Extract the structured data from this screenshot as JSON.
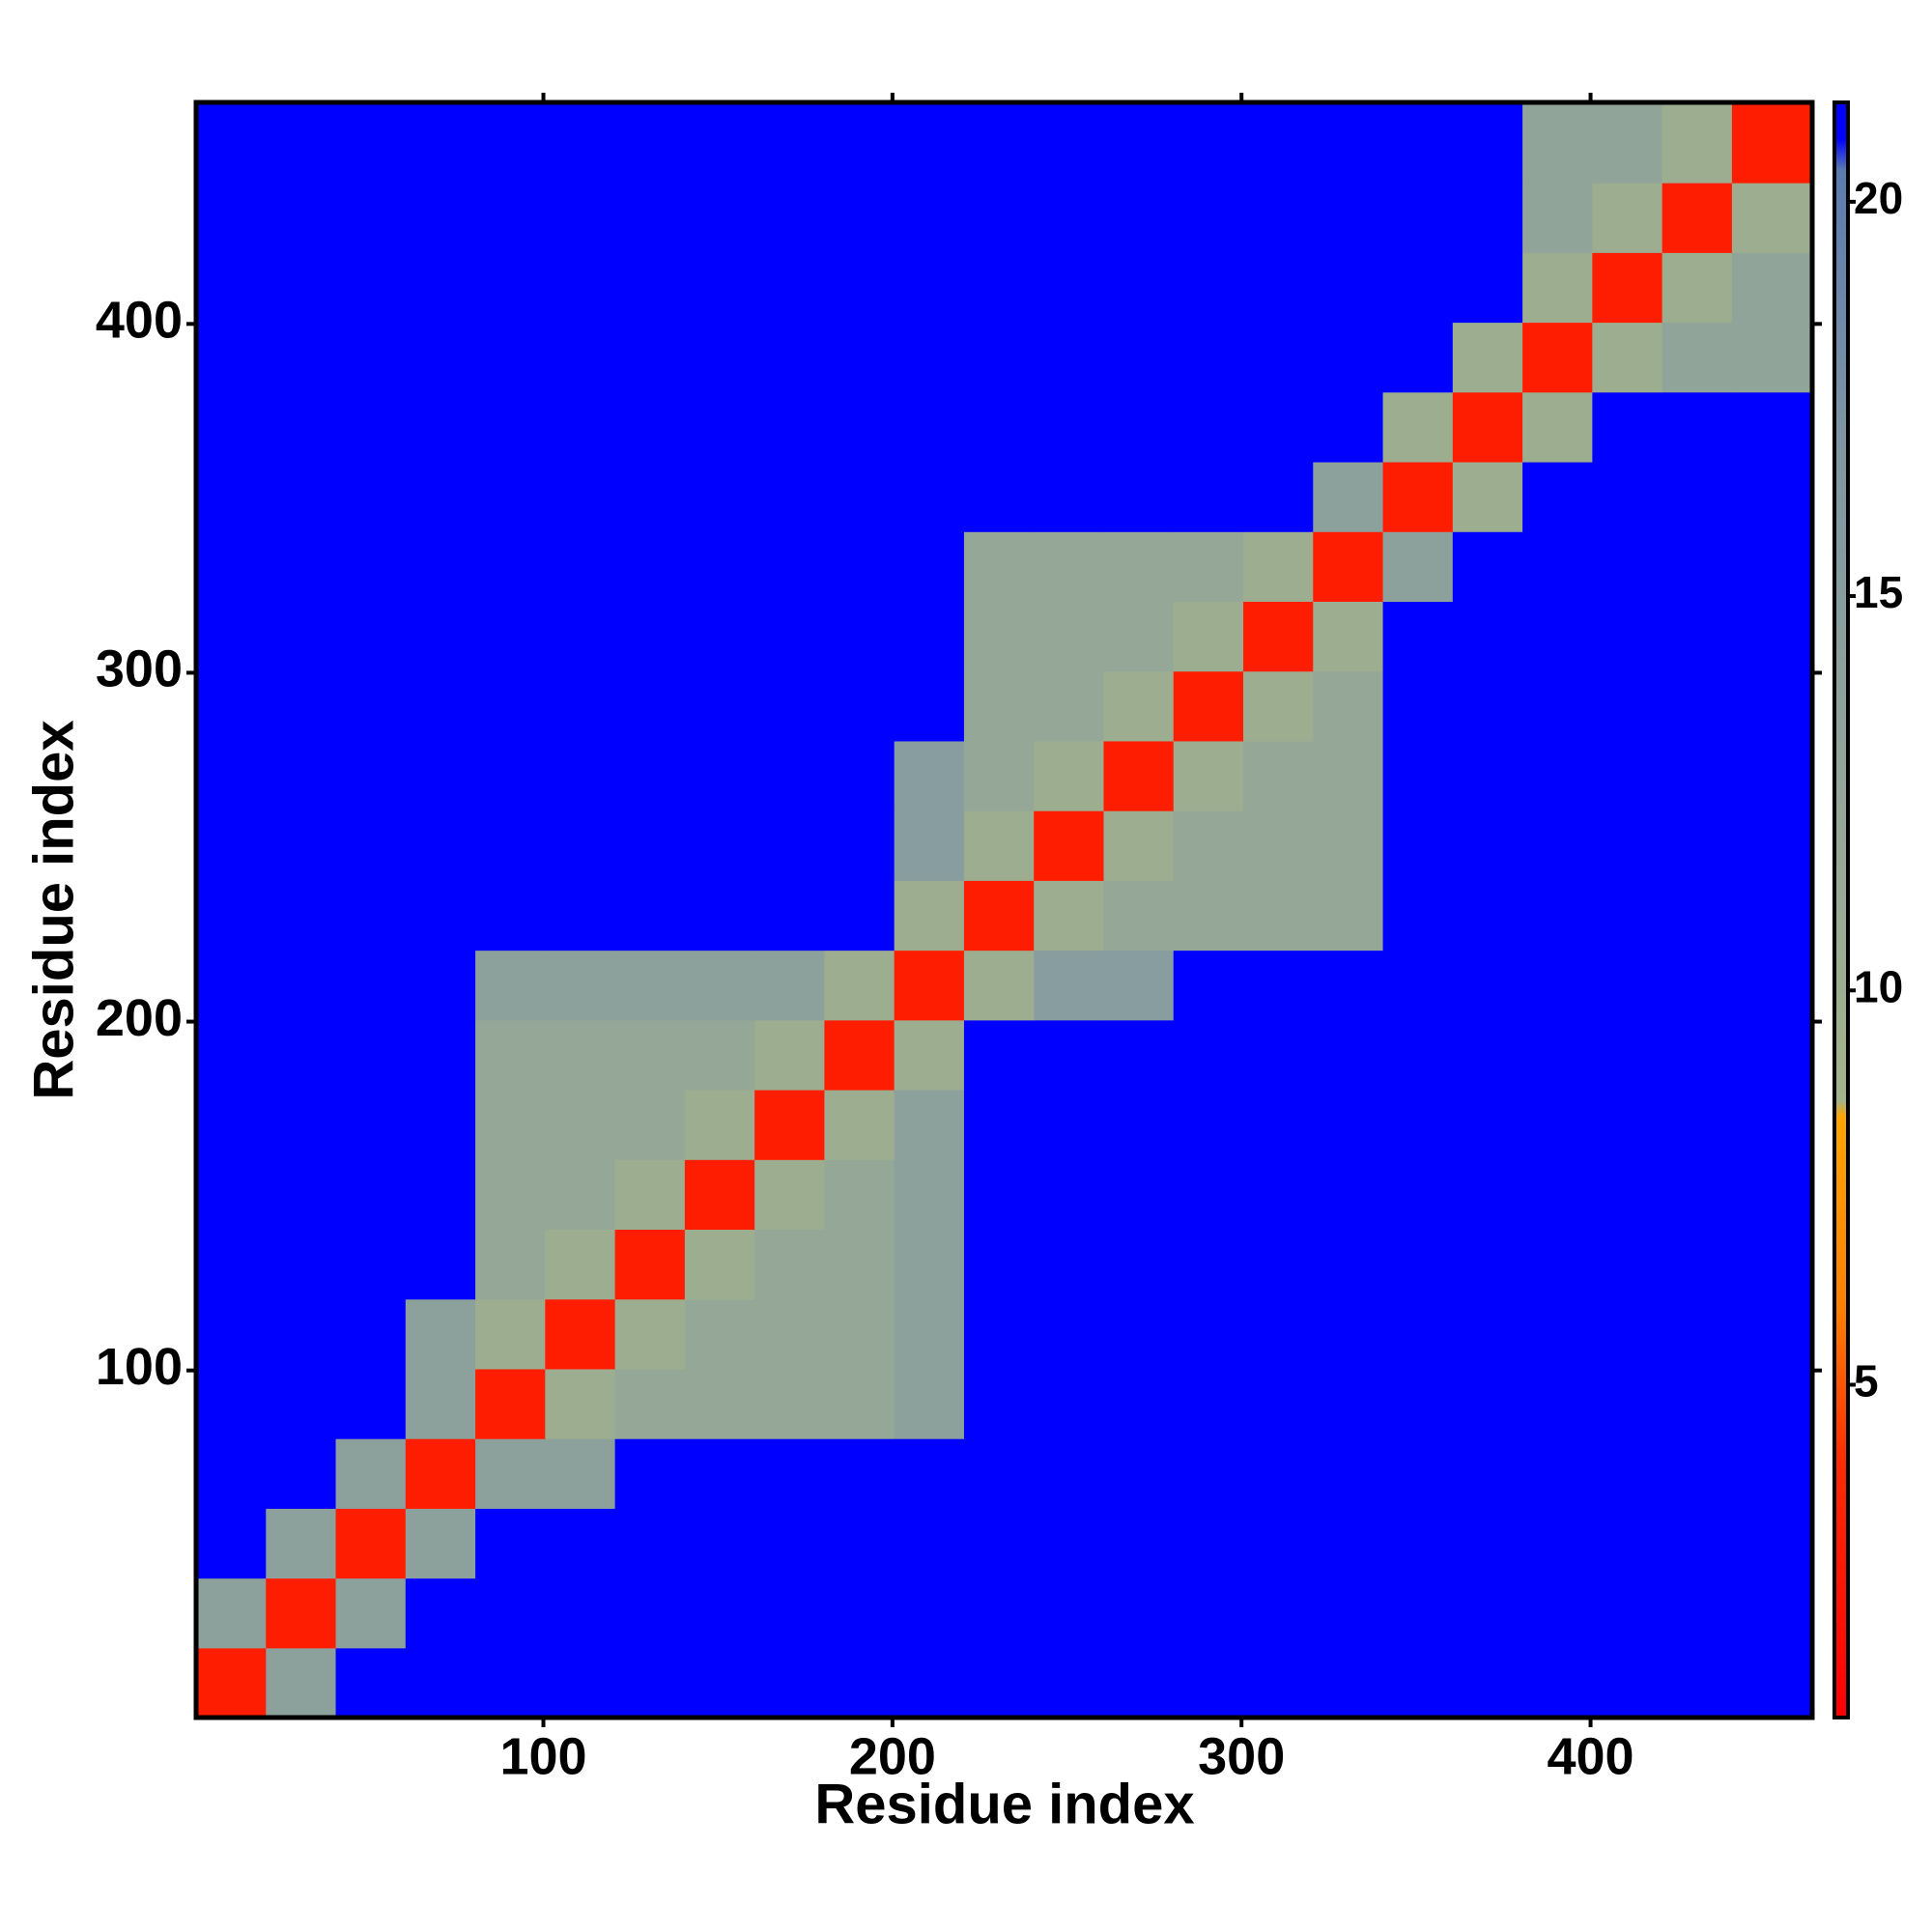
{
  "chart_data": {
    "type": "heatmap",
    "xlabel": "Residue index",
    "ylabel": "Residue index",
    "bins": [
      0.5,
      20.5,
      40.5,
      60.5,
      80.5,
      100.5,
      120.5,
      140.5,
      160.5,
      180.5,
      200.5,
      220.5,
      240.5,
      260.5,
      280.5,
      300.5,
      320.5,
      340.5,
      360.5,
      380.5,
      400.5,
      420.5,
      440.5,
      463.5
    ],
    "xlim": [
      0.5,
      463.5
    ],
    "ylim": [
      0.5,
      463.5
    ],
    "xticks": [
      100,
      200,
      300,
      400
    ],
    "yticks": [
      100,
      200,
      300,
      400
    ],
    "values": [
      [
        3,
        14,
        21,
        21,
        21,
        21,
        21,
        21,
        21,
        21,
        21,
        21,
        21,
        21,
        21,
        21,
        21,
        21,
        21,
        21,
        21,
        21,
        21
      ],
      [
        14,
        3,
        14,
        21,
        21,
        21,
        21,
        21,
        21,
        21,
        21,
        21,
        21,
        21,
        21,
        21,
        21,
        21,
        21,
        21,
        21,
        21,
        21
      ],
      [
        21,
        14,
        3,
        14,
        21,
        21,
        21,
        21,
        21,
        21,
        21,
        21,
        21,
        21,
        21,
        21,
        21,
        21,
        21,
        21,
        21,
        21,
        21
      ],
      [
        21,
        21,
        14,
        3,
        14,
        14,
        21,
        21,
        21,
        21,
        21,
        21,
        21,
        21,
        21,
        21,
        21,
        21,
        21,
        21,
        21,
        21,
        21
      ],
      [
        21,
        21,
        21,
        14,
        3,
        10,
        12,
        12,
        12,
        12,
        14,
        21,
        21,
        21,
        21,
        21,
        21,
        21,
        21,
        21,
        21,
        21,
        21
      ],
      [
        21,
        21,
        21,
        14,
        10,
        3,
        10,
        12,
        12,
        12,
        14,
        21,
        21,
        21,
        21,
        21,
        21,
        21,
        21,
        21,
        21,
        21,
        21
      ],
      [
        21,
        21,
        21,
        21,
        12,
        10,
        3,
        10,
        12,
        12,
        14,
        21,
        21,
        21,
        21,
        21,
        21,
        21,
        21,
        21,
        21,
        21,
        21
      ],
      [
        21,
        21,
        21,
        21,
        12,
        12,
        10,
        3,
        10,
        12,
        14,
        21,
        21,
        21,
        21,
        21,
        21,
        21,
        21,
        21,
        21,
        21,
        21
      ],
      [
        21,
        21,
        21,
        21,
        12,
        12,
        12,
        10,
        3,
        10,
        14,
        21,
        21,
        21,
        21,
        21,
        21,
        21,
        21,
        21,
        21,
        21,
        21
      ],
      [
        21,
        21,
        21,
        21,
        12,
        12,
        12,
        12,
        10,
        3,
        10,
        21,
        21,
        21,
        21,
        21,
        21,
        21,
        21,
        21,
        21,
        21,
        21
      ],
      [
        21,
        21,
        21,
        21,
        14,
        14,
        14,
        14,
        14,
        10,
        3,
        10,
        15,
        15,
        21,
        21,
        21,
        21,
        21,
        21,
        21,
        21,
        21
      ],
      [
        21,
        21,
        21,
        21,
        21,
        21,
        21,
        21,
        21,
        21,
        10,
        3,
        10,
        12,
        12,
        12,
        12,
        21,
        21,
        21,
        21,
        21,
        21
      ],
      [
        21,
        21,
        21,
        21,
        21,
        21,
        21,
        21,
        21,
        21,
        15,
        10,
        3,
        10,
        12,
        12,
        12,
        21,
        21,
        21,
        21,
        21,
        21
      ],
      [
        21,
        21,
        21,
        21,
        21,
        21,
        21,
        21,
        21,
        21,
        15,
        12,
        10,
        3,
        10,
        12,
        12,
        21,
        21,
        21,
        21,
        21,
        21
      ],
      [
        21,
        21,
        21,
        21,
        21,
        21,
        21,
        21,
        21,
        21,
        21,
        12,
        12,
        10,
        3,
        10,
        12,
        21,
        21,
        21,
        21,
        21,
        21
      ],
      [
        21,
        21,
        21,
        21,
        21,
        21,
        21,
        21,
        21,
        21,
        21,
        12,
        12,
        12,
        10,
        3,
        10,
        21,
        21,
        21,
        21,
        21,
        21
      ],
      [
        21,
        21,
        21,
        21,
        21,
        21,
        21,
        21,
        21,
        21,
        21,
        12,
        12,
        12,
        12,
        10,
        3,
        14,
        21,
        21,
        21,
        21,
        21
      ],
      [
        21,
        21,
        21,
        21,
        21,
        21,
        21,
        21,
        21,
        21,
        21,
        21,
        21,
        21,
        21,
        21,
        14,
        3,
        10,
        21,
        21,
        21,
        21
      ],
      [
        21,
        21,
        21,
        21,
        21,
        21,
        21,
        21,
        21,
        21,
        21,
        21,
        21,
        21,
        21,
        21,
        21,
        10,
        3,
        10,
        21,
        21,
        21
      ],
      [
        21,
        21,
        21,
        21,
        21,
        21,
        21,
        21,
        21,
        21,
        21,
        21,
        21,
        21,
        21,
        21,
        21,
        21,
        10,
        3,
        10,
        13,
        13
      ],
      [
        21,
        21,
        21,
        21,
        21,
        21,
        21,
        21,
        21,
        21,
        21,
        21,
        21,
        21,
        21,
        21,
        21,
        21,
        21,
        10,
        3,
        10,
        13
      ],
      [
        21,
        21,
        21,
        21,
        21,
        21,
        21,
        21,
        21,
        21,
        21,
        21,
        21,
        21,
        21,
        21,
        21,
        21,
        21,
        13,
        10,
        3,
        10
      ],
      [
        21,
        21,
        21,
        21,
        21,
        21,
        21,
        21,
        21,
        21,
        21,
        21,
        21,
        21,
        21,
        21,
        21,
        21,
        21,
        13,
        13,
        10,
        3
      ]
    ],
    "colorscale": [
      [
        0.78,
        "#ff0000"
      ],
      [
        4,
        "#ff2a00"
      ],
      [
        6,
        "#ff8000"
      ],
      [
        8.4,
        "#ffa500"
      ],
      [
        8.6,
        "#a3b38a"
      ],
      [
        12,
        "#95a898"
      ],
      [
        17,
        "#7f95a3"
      ],
      [
        20.4,
        "#5b7bb0"
      ],
      [
        20.8,
        "#0000ff"
      ],
      [
        21.26,
        "#0000ff"
      ]
    ],
    "clim": [
      0.78,
      21.26
    ],
    "cticks": [
      5,
      10,
      15,
      20
    ]
  }
}
